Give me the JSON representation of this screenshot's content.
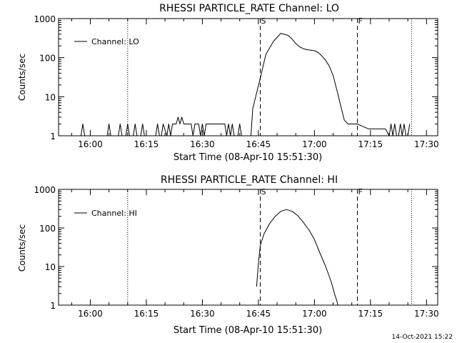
{
  "timestamp": "14-Oct-2021 15:22",
  "chart_data": [
    {
      "type": "line",
      "title": "RHESSI PARTICLE_RATE Channel: LO",
      "xlabel": "Start Time (08-Apr-10 15:51:30)",
      "ylabel": "Counts/sec",
      "yscale": "log",
      "xlim": [
        "15:51:30",
        "17:33:00"
      ],
      "ylim": [
        1,
        1000
      ],
      "xticks": [
        "16:00",
        "16:15",
        "16:30",
        "16:45",
        "17:00",
        "17:15",
        "17:30"
      ],
      "yticks": [
        "1",
        "10",
        "100",
        "1000"
      ],
      "legend": {
        "label": "Channel: LO",
        "position": "top-left"
      },
      "markers": [
        {
          "time": "16:10:00",
          "style": "dotted",
          "label": ""
        },
        {
          "time": "16:45:30",
          "style": "dashed",
          "label": "S"
        },
        {
          "time": "17:11:30",
          "style": "dashed",
          "label": "F"
        },
        {
          "time": "17:26:00",
          "style": "dotted",
          "label": ""
        }
      ],
      "series": [
        {
          "name": "Channel: LO",
          "x": [
            "15:51:30",
            "15:57:30",
            "15:58:00",
            "15:58:30",
            "16:04:30",
            "16:05:00",
            "16:05:30",
            "16:07:30",
            "16:08:00",
            "16:08:30",
            "16:09:30",
            "16:10:00",
            "16:10:30",
            "16:11:30",
            "16:12:00",
            "16:12:30",
            "16:13:30",
            "16:14:00",
            "16:14:30",
            "16:17:30",
            "16:18:00",
            "16:18:30",
            "16:19:00",
            "16:19:30",
            "16:20:30",
            "16:21:00",
            "16:21:30",
            "16:22:00",
            "16:23:00",
            "16:23:30",
            "16:24:00",
            "16:24:30",
            "16:25:00",
            "16:25:30",
            "16:26:00",
            "16:26:30",
            "16:27:00",
            "16:27:30",
            "16:28:00",
            "16:29:00",
            "16:29:30",
            "16:30:00",
            "16:30:30",
            "16:31:00",
            "16:31:30",
            "16:33:00",
            "16:33:30",
            "16:34:00",
            "16:36:00",
            "16:36:30",
            "16:37:00",
            "16:37:30",
            "16:38:00",
            "16:38:30",
            "16:39:30",
            "16:40:00",
            "16:40:30",
            "16:43:00",
            "16:43:30",
            "16:45:30",
            "16:47:00",
            "16:49:00",
            "16:51:00",
            "16:53:00",
            "16:54:00",
            "16:55:00",
            "16:56:00",
            "16:57:00",
            "16:58:00",
            "16:59:00",
            "17:00:00",
            "17:01:00",
            "17:02:00",
            "17:03:00",
            "17:04:00",
            "17:05:00",
            "17:06:00",
            "17:07:00",
            "17:08:00",
            "17:09:00",
            "17:10:00",
            "17:11:00",
            "17:11:30",
            "17:14:30",
            "17:15:00",
            "17:16:00",
            "17:17:00",
            "17:18:00",
            "17:19:00",
            "17:20:00",
            "17:20:30",
            "17:21:00",
            "17:21:30",
            "17:22:00",
            "17:22:30",
            "17:23:00",
            "17:23:30",
            "17:24:00",
            "17:24:30",
            "17:25:00",
            "17:25:30"
          ],
          "y": [
            1,
            1,
            2,
            1,
            1,
            2,
            1,
            1,
            2,
            1,
            1,
            2,
            1,
            1,
            2,
            1,
            1,
            2,
            1,
            1,
            2,
            1,
            1,
            2,
            1,
            2,
            1,
            2,
            2,
            3,
            2,
            3,
            2,
            2,
            2,
            2,
            2,
            1,
            2,
            2,
            1,
            2,
            1,
            2,
            2,
            2,
            2,
            2,
            2,
            1,
            2,
            1,
            2,
            1,
            1,
            2,
            1,
            1,
            5,
            30,
            120,
            260,
            420,
            370,
            300,
            230,
            190,
            170,
            160,
            155,
            150,
            135,
            110,
            85,
            60,
            35,
            15,
            6,
            2.5,
            2,
            2,
            2,
            2,
            1.5,
            1.5,
            1.5,
            1.5,
            1.5,
            1.5,
            1,
            2,
            1,
            2,
            1,
            1,
            2,
            1,
            2,
            1,
            1,
            2
          ]
        }
      ]
    },
    {
      "type": "line",
      "title": "RHESSI PARTICLE_RATE Channel: HI",
      "xlabel": "Start Time (08-Apr-10 15:51:30)",
      "ylabel": "Counts/sec",
      "yscale": "log",
      "xlim": [
        "15:51:30",
        "17:33:00"
      ],
      "ylim": [
        1,
        1000
      ],
      "xticks": [
        "16:00",
        "16:15",
        "16:30",
        "16:45",
        "17:00",
        "17:15",
        "17:30"
      ],
      "yticks": [
        "1",
        "10",
        "100",
        "1000"
      ],
      "legend": {
        "label": "Channel: HI",
        "position": "top-left"
      },
      "markers": [
        {
          "time": "16:10:00",
          "style": "dotted",
          "label": ""
        },
        {
          "time": "16:45:30",
          "style": "dashed",
          "label": "S"
        },
        {
          "time": "17:11:30",
          "style": "dashed",
          "label": "F"
        },
        {
          "time": "17:26:00",
          "style": "dotted",
          "label": ""
        }
      ],
      "series": [
        {
          "name": "Channel: HI",
          "x": [
            "16:44:30",
            "16:45:00",
            "16:45:30",
            "16:46:30",
            "16:48:00",
            "16:49:30",
            "16:51:00",
            "16:52:30",
            "16:54:00",
            "16:55:30",
            "16:57:00",
            "16:58:30",
            "17:00:00",
            "17:01:30",
            "17:03:00",
            "17:04:30",
            "17:05:30",
            "17:06:00",
            "17:06:15"
          ],
          "y": [
            3,
            12,
            35,
            70,
            130,
            200,
            270,
            300,
            270,
            210,
            140,
            90,
            50,
            22,
            10,
            4,
            1.8,
            1.3,
            1
          ]
        }
      ]
    }
  ]
}
